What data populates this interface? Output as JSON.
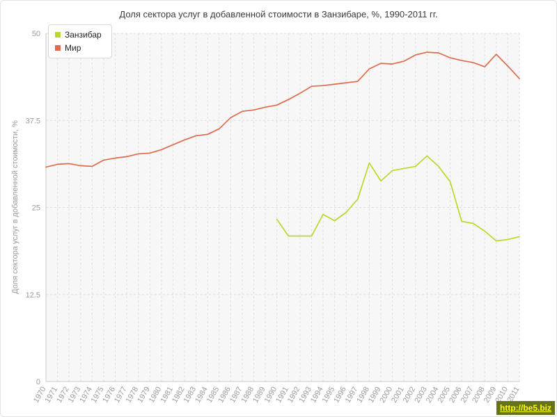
{
  "chart_data": {
    "type": "line",
    "title": "Доля сектора услуг в добавленной стоимости в Занзибаре, %, 1990-2011 гг.",
    "ylabel": "Доля сектора услуг в добавленной стоимости, %",
    "xlabel": "",
    "ylim": [
      0,
      50
    ],
    "yticks": [
      0,
      12.5,
      25,
      37.5,
      50
    ],
    "grid": "dashed",
    "legend_position": "top-left",
    "x": [
      1970,
      1971,
      1972,
      1973,
      1974,
      1975,
      1976,
      1977,
      1978,
      1979,
      1980,
      1981,
      1982,
      1983,
      1984,
      1985,
      1986,
      1987,
      1988,
      1989,
      1990,
      1991,
      1992,
      1993,
      1994,
      1995,
      1996,
      1997,
      1998,
      1999,
      2000,
      2001,
      2002,
      2003,
      2004,
      2005,
      2006,
      2007,
      2008,
      2009,
      2010,
      2011
    ],
    "series": [
      {
        "name": "Занзибар",
        "color": "#bdd62c",
        "values": [
          null,
          null,
          null,
          null,
          null,
          null,
          null,
          null,
          null,
          null,
          null,
          null,
          null,
          null,
          null,
          null,
          null,
          null,
          null,
          null,
          23.3,
          20.9,
          20.9,
          20.9,
          24.0,
          23.1,
          24.3,
          26.2,
          31.4,
          28.8,
          30.3,
          30.6,
          30.9,
          32.4,
          30.9,
          28.7,
          23.0,
          22.7,
          21.6,
          20.2,
          20.4,
          20.8
        ]
      },
      {
        "name": "Мир",
        "color": "#dd6b4b",
        "values": [
          30.8,
          31.2,
          31.3,
          31.0,
          30.9,
          31.8,
          32.1,
          32.3,
          32.7,
          32.8,
          33.3,
          34.0,
          34.7,
          35.3,
          35.5,
          36.3,
          37.9,
          38.8,
          39.0,
          39.4,
          39.7,
          40.5,
          41.4,
          42.4,
          42.5,
          42.7,
          42.9,
          43.1,
          44.9,
          45.7,
          45.6,
          46.0,
          46.9,
          47.3,
          47.2,
          46.5,
          46.1,
          45.8,
          45.2,
          47.0,
          45.3,
          43.5
        ]
      }
    ]
  },
  "watermark": {
    "text": "http://be5.biz"
  }
}
